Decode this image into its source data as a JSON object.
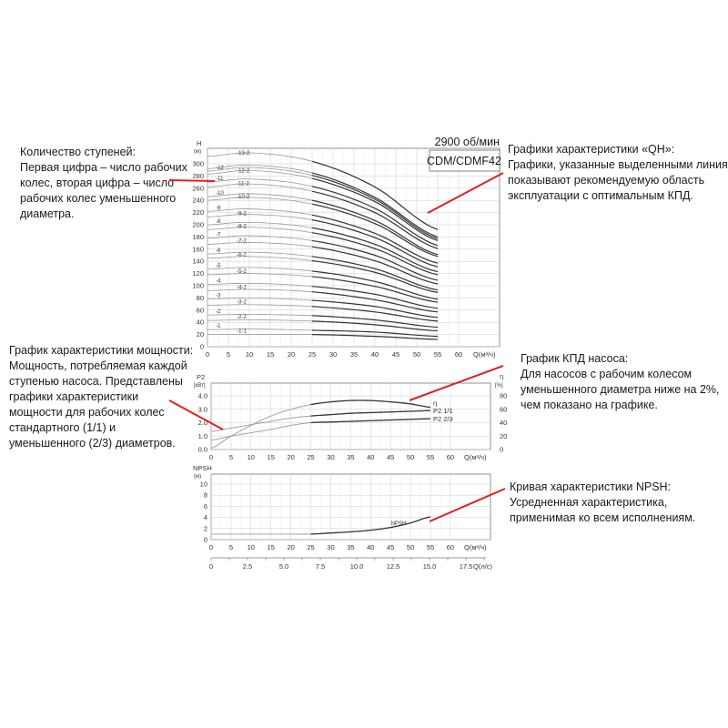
{
  "annotations": {
    "stages": {
      "lines": [
        "Количество ступеней:",
        "Первая цифра – число рабочих",
        "колес, вторая цифра – число",
        "рабочих колес уменьшенного",
        "диаметра."
      ]
    },
    "qh": {
      "lines": [
        "Графики характеристики «QH»:",
        "Графики, указанные выделенными линиями,",
        "показывают рекомендуемую область",
        "эксплуатации с оптимальным КПД."
      ]
    },
    "power": {
      "lines": [
        "График характеристики мощности:",
        "Мощность, потребляемая каждой",
        "ступенью насоса. Представлены",
        "графики характеристики",
        "мощности для рабочих колес",
        "стандартного (1/1) и",
        "уменьшенного (2/3) диаметров."
      ]
    },
    "efficiency": {
      "lines": [
        "График КПД насоса:",
        "Для насосов с рабочим колесом",
        "уменьшенного диаметра ниже на 2%,",
        "чем показано на графике."
      ]
    },
    "npsh": {
      "lines": [
        "Кривая характеристики NPSH:",
        "Усредненная характеристика,",
        "применимая ко всем исполнениям."
      ]
    }
  },
  "colors": {
    "annotation_line": "#e02020",
    "curve_highlight": "#333333",
    "curve_normal": "#999999"
  },
  "chart_data": [
    {
      "type": "line",
      "title": "CDM/CDMF42",
      "subtitle": "2900 об/мин",
      "ylabel": "H",
      "yunit": "(м)",
      "xlabel": "Q(м³/ч)",
      "xlim": [
        0,
        60
      ],
      "ylim": [
        0,
        320
      ],
      "xticks": [
        0,
        5,
        10,
        15,
        20,
        25,
        30,
        35,
        40,
        45,
        50,
        55,
        60
      ],
      "yticks": [
        0,
        20,
        40,
        60,
        80,
        100,
        120,
        140,
        160,
        180,
        200,
        220,
        240,
        260,
        280,
        300
      ],
      "grid": true,
      "highlight_range": [
        25,
        55
      ],
      "x": [
        0,
        10,
        25,
        40,
        55
      ],
      "series": [
        {
          "name": "-13-2",
          "values": [
            312,
            318,
            304,
            262,
            192
          ]
        },
        {
          "name": "",
          "values": [
            292,
            298,
            285,
            245,
            180
          ]
        },
        {
          "name": "-12",
          "values": [
            288,
            294,
            281,
            242,
            177
          ]
        },
        {
          "name": "-12-2",
          "values": [
            283,
            289,
            276,
            238,
            174
          ]
        },
        {
          "name": "-11",
          "values": [
            270,
            275,
            263,
            227,
            166
          ]
        },
        {
          "name": "-11-2",
          "values": [
            262,
            267,
            255,
            220,
            161
          ]
        },
        {
          "name": "-10",
          "values": [
            246,
            251,
            240,
            207,
            151
          ]
        },
        {
          "name": "-10-2",
          "values": [
            240,
            245,
            234,
            202,
            148
          ]
        },
        {
          "name": "-9",
          "values": [
            222,
            226,
            216,
            186,
            137
          ]
        },
        {
          "name": "-9-2",
          "values": [
            213,
            217,
            208,
            179,
            131
          ]
        },
        {
          "name": "-8",
          "values": [
            200,
            204,
            195,
            168,
            123
          ]
        },
        {
          "name": "-8-2",
          "values": [
            192,
            196,
            187,
            161,
            118
          ]
        },
        {
          "name": "-7",
          "values": [
            178,
            182,
            174,
            150,
            109
          ]
        },
        {
          "name": "-7-2",
          "values": [
            168,
            171,
            164,
            141,
            103
          ]
        },
        {
          "name": "-6",
          "values": [
            152,
            155,
            148,
            128,
            93
          ]
        },
        {
          "name": "-6-2",
          "values": [
            145,
            148,
            141,
            122,
            89
          ]
        },
        {
          "name": "-5",
          "values": [
            127,
            130,
            124,
            107,
            78
          ]
        },
        {
          "name": "-5-2",
          "values": [
            118,
            120,
            115,
            99,
            73
          ]
        },
        {
          "name": "-4",
          "values": [
            102,
            104,
            99,
            86,
            63
          ]
        },
        {
          "name": "-4-2",
          "values": [
            92,
            94,
            90,
            77,
            57
          ]
        },
        {
          "name": "-3",
          "values": [
            78,
            80,
            76,
            66,
            48
          ]
        },
        {
          "name": "-3-2",
          "values": [
            68,
            69,
            66,
            57,
            42
          ]
        },
        {
          "name": "-2",
          "values": [
            52,
            53,
            51,
            44,
            32
          ]
        },
        {
          "name": "-2-2",
          "values": [
            43,
            44,
            42,
            36,
            26
          ]
        },
        {
          "name": "-1",
          "values": [
            28,
            29,
            27,
            24,
            17
          ]
        },
        {
          "name": "-1-1",
          "values": [
            20,
            20,
            20,
            17,
            12
          ]
        }
      ]
    },
    {
      "type": "line",
      "ylabel": "P2",
      "yunit": "[кВт]",
      "y2label": "η",
      "y2unit": "[%]",
      "xlabel": "Q(м³/ч)",
      "xlim": [
        0,
        60
      ],
      "ylim": [
        0,
        4.8
      ],
      "y2lim": [
        0,
        96
      ],
      "xticks": [
        0,
        5,
        10,
        15,
        20,
        25,
        30,
        35,
        40,
        45,
        50,
        55,
        60
      ],
      "yticks": [
        "0.0",
        "1.0",
        "2.0",
        "3.0",
        "4.0"
      ],
      "y2ticks": [
        0,
        20,
        40,
        60,
        80
      ],
      "grid": true,
      "x": [
        0,
        5,
        10,
        15,
        20,
        25,
        30,
        35,
        40,
        45,
        50,
        55
      ],
      "series": [
        {
          "name": "η",
          "axis": "right",
          "values": [
            2,
            20,
            36,
            50,
            60,
            67,
            71,
            73,
            73,
            71,
            68,
            63
          ]
        },
        {
          "name": "P2 1/1",
          "axis": "left",
          "values": [
            1.35,
            1.6,
            1.85,
            2.1,
            2.35,
            2.5,
            2.6,
            2.7,
            2.75,
            2.8,
            2.85,
            2.9
          ]
        },
        {
          "name": "P2 2/3",
          "axis": "left",
          "values": [
            0.7,
            1.0,
            1.25,
            1.5,
            1.8,
            2.0,
            2.05,
            2.1,
            2.15,
            2.2,
            2.25,
            2.3
          ]
        }
      ]
    },
    {
      "type": "line",
      "ylabel": "NPSH",
      "yunit": "(м)",
      "xlabel": "Q(м³/ч)",
      "xlim": [
        0,
        60
      ],
      "ylim": [
        0,
        12
      ],
      "xticks": [
        0,
        5,
        10,
        15,
        20,
        25,
        30,
        35,
        40,
        45,
        50,
        55,
        60
      ],
      "yticks": [
        0,
        2,
        4,
        6,
        8,
        10
      ],
      "grid": true,
      "x": [
        0,
        5,
        10,
        15,
        20,
        25,
        30,
        35,
        40,
        45,
        50,
        55
      ],
      "series": [
        {
          "name": "NPSH",
          "values": [
            1.0,
            1.0,
            1.0,
            1.0,
            1.0,
            1.0,
            1.2,
            1.4,
            1.7,
            2.2,
            3.0,
            4.1
          ]
        }
      ],
      "secondary_xaxis": {
        "label": "Q(л/с)",
        "ticks": [
          "0",
          "2.5",
          "5.0",
          "7.5",
          "10.0",
          "12.5",
          "15.0",
          "17.5"
        ]
      }
    }
  ]
}
